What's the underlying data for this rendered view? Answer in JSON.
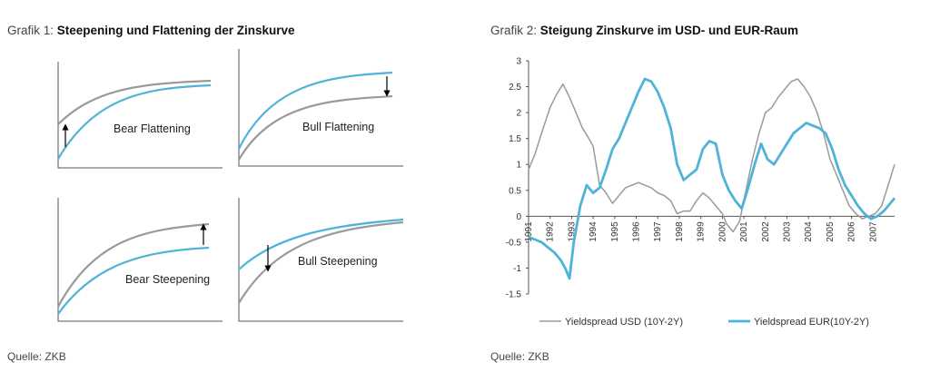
{
  "chart1": {
    "title_prefix": "Grafik 1: ",
    "title": "Steepening und Flattening der Zinskurve",
    "panels": [
      {
        "label": "Bear Flattening"
      },
      {
        "label": "Bull Flattening"
      },
      {
        "label": "Bear Steepening"
      },
      {
        "label": "Bull Steepening"
      }
    ],
    "source": "Quelle: ZKB"
  },
  "chart2": {
    "title_prefix": "Grafik 2: ",
    "title": "Steigung Zinskurve im USD- und EUR-Raum",
    "source": "Quelle: ZKB"
  },
  "colors": {
    "usd": "#9a9a9a",
    "eur": "#4fb3d9",
    "axis": "#555555"
  },
  "chart_data": [
    {
      "type": "line",
      "title": "Steepening und Flattening der Zinskurve",
      "panels": [
        "Bear Flattening",
        "Bull Flattening",
        "Bear Steepening",
        "Bull Steepening"
      ]
    },
    {
      "type": "line",
      "title": "Steigung Zinskurve im USD- und EUR-Raum",
      "ylim": [
        -1.5,
        3
      ],
      "yticks": [
        -1.5,
        -1,
        -0.5,
        0,
        0.5,
        1,
        1.5,
        2,
        2.5,
        3
      ],
      "xlim": [
        1991,
        2008
      ],
      "xticks": [
        "1991",
        "1992",
        "1993",
        "1994",
        "1995",
        "1996",
        "1997",
        "1998",
        "1999",
        "2000",
        "2001",
        "2002",
        "2003",
        "2004",
        "2005",
        "2006",
        "2007"
      ],
      "legend": "bottom",
      "series": [
        {
          "name": "Yieldspread USD (10Y-2Y)",
          "x": [
            1991.0,
            1991.3,
            1991.6,
            1992.0,
            1992.3,
            1992.6,
            1992.9,
            1993.2,
            1993.5,
            1993.8,
            1994.0,
            1994.3,
            1994.6,
            1994.9,
            1995.2,
            1995.5,
            1995.8,
            1996.1,
            1996.4,
            1996.7,
            1997.0,
            1997.3,
            1997.6,
            1997.9,
            1998.2,
            1998.5,
            1998.8,
            1999.1,
            1999.4,
            1999.7,
            2000.0,
            2000.2,
            2000.5,
            2000.8,
            2001.1,
            2001.4,
            2001.7,
            2002.0,
            2002.3,
            2002.6,
            2002.9,
            2003.2,
            2003.5,
            2003.8,
            2004.1,
            2004.4,
            2004.7,
            2005.0,
            2005.3,
            2005.6,
            2005.9,
            2006.2,
            2006.5,
            2006.8,
            2007.1,
            2007.4,
            2007.7,
            2008.0
          ],
          "y": [
            0.9,
            1.2,
            1.6,
            2.1,
            2.35,
            2.55,
            2.3,
            2.0,
            1.7,
            1.5,
            1.35,
            0.6,
            0.45,
            0.25,
            0.4,
            0.55,
            0.6,
            0.65,
            0.6,
            0.55,
            0.45,
            0.4,
            0.3,
            0.05,
            0.1,
            0.1,
            0.3,
            0.45,
            0.35,
            0.2,
            0.05,
            -0.15,
            -0.3,
            -0.1,
            0.5,
            1.1,
            1.6,
            2.0,
            2.1,
            2.3,
            2.45,
            2.6,
            2.65,
            2.5,
            2.3,
            2.0,
            1.6,
            1.1,
            0.8,
            0.5,
            0.2,
            0.05,
            -0.05,
            0.0,
            0.05,
            0.2,
            0.6,
            1.0
          ]
        },
        {
          "name": "Yieldspread EUR(10Y-2Y)",
          "x": [
            1991.0,
            1991.3,
            1991.6,
            1991.9,
            1992.2,
            1992.5,
            1992.7,
            1992.9,
            1993.1,
            1993.4,
            1993.7,
            1994.0,
            1994.3,
            1994.6,
            1994.9,
            1995.2,
            1995.5,
            1995.8,
            1996.1,
            1996.4,
            1996.7,
            1997.0,
            1997.3,
            1997.6,
            1997.9,
            1998.2,
            1998.5,
            1998.8,
            1999.1,
            1999.4,
            1999.7,
            2000.0,
            2000.3,
            2000.6,
            2000.9,
            2001.2,
            2001.5,
            2001.8,
            2002.1,
            2002.4,
            2002.7,
            2003.0,
            2003.3,
            2003.6,
            2003.9,
            2004.2,
            2004.5,
            2004.8,
            2005.1,
            2005.4,
            2005.7,
            2006.0,
            2006.3,
            2006.6,
            2006.9,
            2007.2,
            2007.5,
            2007.8,
            2008.0
          ],
          "y": [
            -0.4,
            -0.45,
            -0.5,
            -0.6,
            -0.7,
            -0.85,
            -1.0,
            -1.2,
            -0.5,
            0.2,
            0.6,
            0.45,
            0.55,
            0.9,
            1.3,
            1.5,
            1.8,
            2.1,
            2.4,
            2.65,
            2.6,
            2.4,
            2.1,
            1.7,
            1.0,
            0.7,
            0.8,
            0.9,
            1.3,
            1.45,
            1.4,
            0.8,
            0.5,
            0.3,
            0.15,
            0.55,
            1.0,
            1.4,
            1.1,
            1.0,
            1.2,
            1.4,
            1.6,
            1.7,
            1.8,
            1.75,
            1.7,
            1.6,
            1.3,
            0.9,
            0.6,
            0.4,
            0.2,
            0.05,
            -0.05,
            0.0,
            0.1,
            0.25,
            0.35
          ]
        }
      ]
    }
  ]
}
